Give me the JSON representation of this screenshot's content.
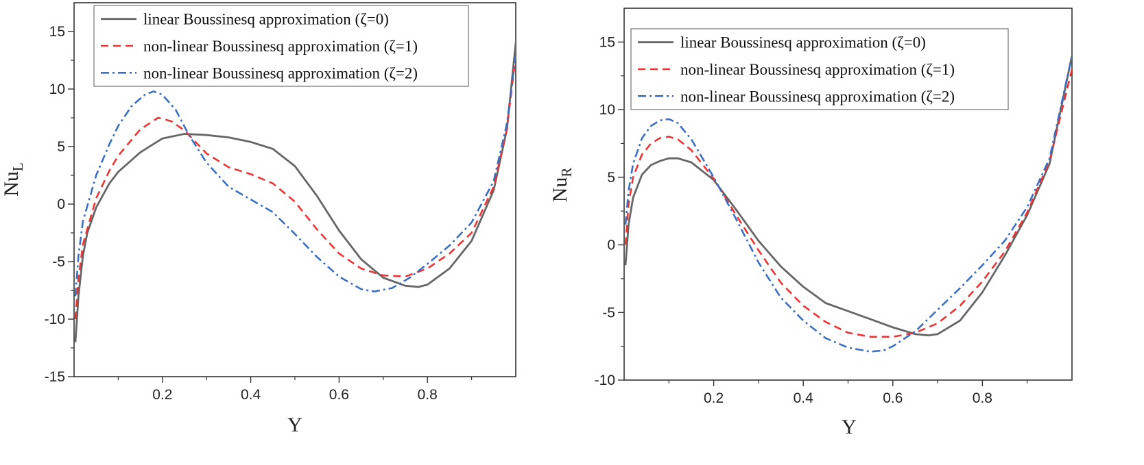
{
  "chart_data": [
    {
      "type": "line",
      "title": "",
      "xlabel": "Y",
      "ylabel": "Nu",
      "ylabel_sub": "L",
      "xlim": [
        0,
        1
      ],
      "ylim": [
        -15,
        17.5
      ],
      "xticks": [
        0.2,
        0.4,
        0.6,
        0.8
      ],
      "xtick_labels": [
        "0.2",
        "0.4",
        "0.6",
        "0.8"
      ],
      "yticks": [
        -15,
        -10,
        -5,
        0,
        5,
        10,
        15
      ],
      "ytick_labels": [
        "-15",
        "-10",
        "-5",
        "0",
        "5",
        "10",
        "15"
      ],
      "legend_position": "top",
      "series": [
        {
          "name": "linear Boussinesq approximation (ζ=0)",
          "color": "#666666",
          "style": "solid",
          "x": [
            0.003,
            0.01,
            0.02,
            0.03,
            0.05,
            0.08,
            0.1,
            0.15,
            0.2,
            0.25,
            0.3,
            0.35,
            0.4,
            0.45,
            0.5,
            0.55,
            0.6,
            0.65,
            0.7,
            0.75,
            0.78,
            0.8,
            0.85,
            0.9,
            0.95,
            0.98,
            1.0
          ],
          "y": [
            -12,
            -8,
            -4.5,
            -2.5,
            -0.3,
            1.8,
            2.8,
            4.5,
            5.7,
            6.1,
            6.0,
            5.8,
            5.4,
            4.8,
            3.3,
            0.7,
            -2.3,
            -4.8,
            -6.4,
            -7.1,
            -7.2,
            -7.0,
            -5.6,
            -3.2,
            1.2,
            6.5,
            14
          ]
        },
        {
          "name": "non-linear Boussinesq approximation (ζ=1)",
          "color": "#ee3333",
          "style": "dashed",
          "x": [
            0.003,
            0.01,
            0.02,
            0.05,
            0.08,
            0.1,
            0.15,
            0.19,
            0.22,
            0.25,
            0.3,
            0.35,
            0.4,
            0.45,
            0.5,
            0.55,
            0.6,
            0.65,
            0.7,
            0.75,
            0.8,
            0.85,
            0.9,
            0.95,
            0.98,
            1.0
          ],
          "y": [
            -10,
            -6.5,
            -3.5,
            0.5,
            2.9,
            4.2,
            6.5,
            7.5,
            7.2,
            6.4,
            4.4,
            3.2,
            2.6,
            1.8,
            0.2,
            -2.2,
            -4.3,
            -5.6,
            -6.2,
            -6.3,
            -5.6,
            -4.3,
            -2.5,
            1.5,
            6.5,
            13
          ]
        },
        {
          "name": "non-linear Boussinesq approximation (ζ=2)",
          "color": "#3a6fc4",
          "style": "dashdot",
          "x": [
            0.003,
            0.01,
            0.02,
            0.05,
            0.08,
            0.1,
            0.13,
            0.16,
            0.18,
            0.2,
            0.23,
            0.26,
            0.3,
            0.35,
            0.4,
            0.45,
            0.5,
            0.55,
            0.6,
            0.65,
            0.68,
            0.72,
            0.76,
            0.8,
            0.85,
            0.9,
            0.95,
            0.98,
            1.0
          ],
          "y": [
            -8,
            -4.5,
            -1.5,
            2.5,
            5.2,
            6.8,
            8.5,
            9.5,
            9.8,
            9.5,
            8.2,
            6.0,
            3.6,
            1.5,
            0.4,
            -0.7,
            -2.6,
            -4.6,
            -6.3,
            -7.4,
            -7.6,
            -7.3,
            -6.4,
            -5.2,
            -3.6,
            -1.6,
            2.0,
            7.0,
            13
          ]
        }
      ]
    },
    {
      "type": "line",
      "title": "",
      "xlabel": "Y",
      "ylabel": "Nu",
      "ylabel_sub": "R",
      "xlim": [
        0,
        1
      ],
      "ylim": [
        -10,
        17.5
      ],
      "xticks": [
        0.2,
        0.4,
        0.6,
        0.8
      ],
      "xtick_labels": [
        "0.2",
        "0.4",
        "0.6",
        "0.8"
      ],
      "yticks": [
        -10,
        -5,
        0,
        5,
        10,
        15
      ],
      "ytick_labels": [
        "-10",
        "-5",
        "0",
        "5",
        "10",
        "15"
      ],
      "legend_position": "top",
      "series": [
        {
          "name": "linear Boussinesq approximation (ζ=0)",
          "color": "#666666",
          "style": "solid",
          "x": [
            0.003,
            0.01,
            0.02,
            0.04,
            0.06,
            0.08,
            0.1,
            0.12,
            0.15,
            0.2,
            0.25,
            0.3,
            0.35,
            0.4,
            0.45,
            0.5,
            0.55,
            0.6,
            0.65,
            0.68,
            0.7,
            0.75,
            0.8,
            0.85,
            0.9,
            0.95,
            1.0
          ],
          "y": [
            -1.5,
            1.5,
            3.5,
            5.2,
            5.9,
            6.2,
            6.4,
            6.4,
            6.1,
            4.8,
            2.6,
            0.3,
            -1.6,
            -3.1,
            -4.3,
            -4.9,
            -5.5,
            -6.1,
            -6.6,
            -6.7,
            -6.6,
            -5.6,
            -3.5,
            -0.8,
            2.2,
            6.0,
            14
          ]
        },
        {
          "name": "non-linear Boussinesq approximation (ζ=1)",
          "color": "#ee3333",
          "style": "dashed",
          "x": [
            0.003,
            0.01,
            0.02,
            0.04,
            0.06,
            0.08,
            0.1,
            0.12,
            0.15,
            0.2,
            0.25,
            0.3,
            0.35,
            0.4,
            0.45,
            0.5,
            0.55,
            0.6,
            0.65,
            0.7,
            0.75,
            0.8,
            0.85,
            0.9,
            0.95,
            1.0
          ],
          "y": [
            0,
            3.0,
            5.0,
            6.7,
            7.5,
            7.9,
            8.0,
            7.8,
            7.0,
            4.9,
            2.2,
            -0.4,
            -2.8,
            -4.5,
            -5.7,
            -6.5,
            -6.8,
            -6.8,
            -6.5,
            -5.8,
            -4.5,
            -2.7,
            -0.5,
            2.4,
            6.2,
            13
          ]
        },
        {
          "name": "non-linear Boussinesq approximation (ζ=2)",
          "color": "#3a6fc4",
          "style": "dashdot",
          "x": [
            0.003,
            0.01,
            0.02,
            0.04,
            0.06,
            0.08,
            0.1,
            0.12,
            0.15,
            0.2,
            0.25,
            0.3,
            0.35,
            0.4,
            0.45,
            0.5,
            0.55,
            0.58,
            0.6,
            0.65,
            0.7,
            0.75,
            0.8,
            0.85,
            0.9,
            0.95,
            1.0
          ],
          "y": [
            1.5,
            4.0,
            6.0,
            7.9,
            8.8,
            9.2,
            9.3,
            9.0,
            7.8,
            5.0,
            1.9,
            -1.3,
            -3.9,
            -5.6,
            -6.9,
            -7.6,
            -7.9,
            -7.8,
            -7.5,
            -6.4,
            -4.8,
            -3.2,
            -1.5,
            0.3,
            2.8,
            6.4,
            14
          ]
        }
      ]
    }
  ]
}
